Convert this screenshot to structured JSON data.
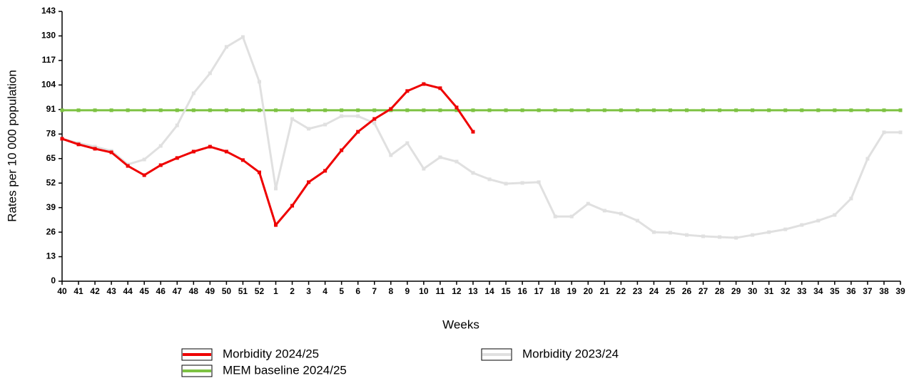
{
  "chart_data": {
    "type": "line",
    "x_label": "Weeks",
    "y_label": "Rates per 10 000 population",
    "categories": [
      "40",
      "41",
      "42",
      "43",
      "44",
      "45",
      "46",
      "47",
      "48",
      "49",
      "50",
      "51",
      "52",
      "1",
      "2",
      "3",
      "4",
      "5",
      "6",
      "7",
      "8",
      "9",
      "10",
      "11",
      "12",
      "13",
      "14",
      "15",
      "16",
      "17",
      "18",
      "19",
      "20",
      "21",
      "22",
      "23",
      "24",
      "25",
      "26",
      "27",
      "28",
      "29",
      "30",
      "31",
      "32",
      "33",
      "34",
      "35",
      "36",
      "37",
      "38",
      "39"
    ],
    "ylim": [
      0,
      143
    ],
    "yticks": [
      0,
      13,
      26,
      39,
      52,
      65,
      78,
      91,
      104,
      117,
      130,
      143
    ],
    "series": [
      {
        "name": "Morbidity 2024/25",
        "color": "#ee0000",
        "values": [
          75.5,
          72.5,
          70.2,
          68.3,
          61.1,
          56.2,
          61.5,
          65.3,
          68.7,
          71.3,
          68.7,
          64.2,
          57.7,
          29.8,
          40,
          52.5,
          58.5,
          69.4,
          79.2,
          86,
          91.3,
          100.8,
          104.5,
          102.3,
          92.1,
          79.2,
          null,
          null,
          null,
          null,
          null,
          null,
          null,
          null,
          null,
          null,
          null,
          null,
          null,
          null,
          null,
          null,
          null,
          null,
          null,
          null,
          null,
          null,
          null,
          null,
          null,
          null
        ]
      },
      {
        "name": "Morbidity 2023/24",
        "color": "#e0e0e0",
        "values": [
          75.5,
          73.2,
          71.3,
          69.1,
          61.9,
          64.5,
          71.7,
          82.6,
          99.6,
          110.2,
          124.2,
          129.4,
          105.7,
          49.1,
          86,
          80.8,
          83,
          87.5,
          87.5,
          83.8,
          66.8,
          73.2,
          59.6,
          65.7,
          63.4,
          57.4,
          54,
          51.7,
          52.1,
          52.5,
          34.3,
          34.3,
          41.1,
          37.4,
          35.8,
          32.1,
          26,
          25.7,
          24.5,
          23.8,
          23.4,
          23,
          24.5,
          26,
          27.5,
          29.8,
          32.1,
          35.1,
          43.8,
          64.9,
          78.9,
          78.9
        ]
      },
      {
        "name": "MEM baseline 2024/25",
        "color": "#7dc242",
        "values": [
          90.6,
          90.6,
          90.6,
          90.6,
          90.6,
          90.6,
          90.6,
          90.6,
          90.6,
          90.6,
          90.6,
          90.6,
          90.6,
          90.6,
          90.6,
          90.6,
          90.6,
          90.6,
          90.6,
          90.6,
          90.6,
          90.6,
          90.6,
          90.6,
          90.6,
          90.6,
          90.6,
          90.6,
          90.6,
          90.6,
          90.6,
          90.6,
          90.6,
          90.6,
          90.6,
          90.6,
          90.6,
          90.6,
          90.6,
          90.6,
          90.6,
          90.6,
          90.6,
          90.6,
          90.6,
          90.6,
          90.6,
          90.6,
          90.6,
          90.6,
          90.6,
          90.6
        ]
      }
    ]
  }
}
